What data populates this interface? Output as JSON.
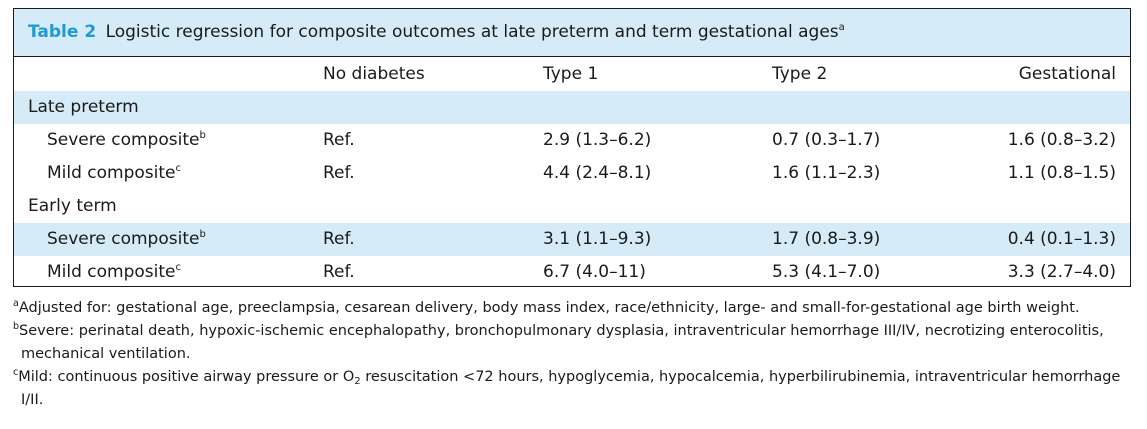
{
  "table": {
    "label": "Table 2",
    "title": "Logistic regression for composite outcomes at late preterm and term gestational ages",
    "title_sup": "a",
    "columns": [
      "",
      "No diabetes",
      "Type 1",
      "Type 2",
      "Gestational"
    ],
    "groups": [
      {
        "label": "Late preterm",
        "rows": [
          {
            "name": "Severe composite",
            "sup": "b",
            "values": [
              "Ref.",
              "2.9 (1.3–6.2)",
              "0.7 (0.3–1.7)",
              "1.6 (0.8–3.2)"
            ]
          },
          {
            "name": "Mild composite",
            "sup": "c",
            "values": [
              "Ref.",
              "4.4 (2.4–8.1)",
              "1.6 (1.1–2.3)",
              "1.1 (0.8–1.5)"
            ]
          }
        ]
      },
      {
        "label": "Early term",
        "rows": [
          {
            "name": "Severe composite",
            "sup": "b",
            "values": [
              "Ref.",
              "3.1 (1.1–9.3)",
              "1.7 (0.8–3.9)",
              "0.4 (0.1–1.3)"
            ]
          },
          {
            "name": "Mild composite",
            "sup": "c",
            "values": [
              "Ref.",
              "6.7 (4.0–11)",
              "5.3 (4.1–7.0)",
              "3.3 (2.7–4.0)"
            ]
          }
        ]
      }
    ]
  },
  "footnotes": {
    "a": {
      "marker": "a",
      "text": "Adjusted for: gestational age, preeclampsia, cesarean delivery, body mass index, race/ethnicity, large- and small-for-gestational age birth weight."
    },
    "b": {
      "marker": "b",
      "text": "Severe: perinatal death, hypoxic-ischemic encephalopathy, bronchopulmonary dysplasia, intraventricular hemorrhage III/IV, necrotizing enterocolitis, mechanical ventilation."
    },
    "c": {
      "marker": "c",
      "text_before": "Mild: continuous positive airway pressure or O",
      "sub": "2",
      "text_after": " resuscitation <72 hours, hypoglycemia, hypocalcemia, hyperbilirubinemia, intraventricular hemorrhage I/II."
    }
  },
  "colors": {
    "header_fill": "#d5ebf7",
    "label_accent": "#1d9bd7"
  }
}
